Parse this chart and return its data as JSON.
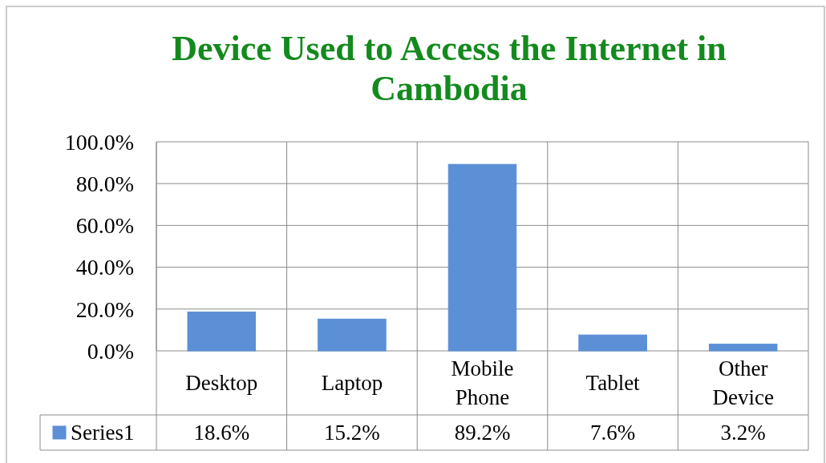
{
  "chart_data": {
    "type": "bar",
    "title": "Device Used to Access the Internet in Cambodia",
    "categories": [
      "Desktop",
      "Laptop",
      "Mobile Phone",
      "Tablet",
      "Other Device"
    ],
    "series": [
      {
        "name": "Series1",
        "color": "#5b8fd6",
        "values": [
          18.6,
          15.2,
          89.2,
          7.6,
          3.2
        ],
        "value_labels": [
          "18.6%",
          "15.2%",
          "89.2%",
          "7.6%",
          "3.2%"
        ]
      }
    ],
    "ylim": [
      0,
      100
    ],
    "yticks": [
      {
        "value": 0,
        "label": "0.0%"
      },
      {
        "value": 20,
        "label": "20.0%"
      },
      {
        "value": 40,
        "label": "40.0%"
      },
      {
        "value": 60,
        "label": "60.0%"
      },
      {
        "value": 80,
        "label": "80.0%"
      },
      {
        "value": 100,
        "label": "100.0%"
      }
    ],
    "grid": "y",
    "legend": "bottom left"
  }
}
